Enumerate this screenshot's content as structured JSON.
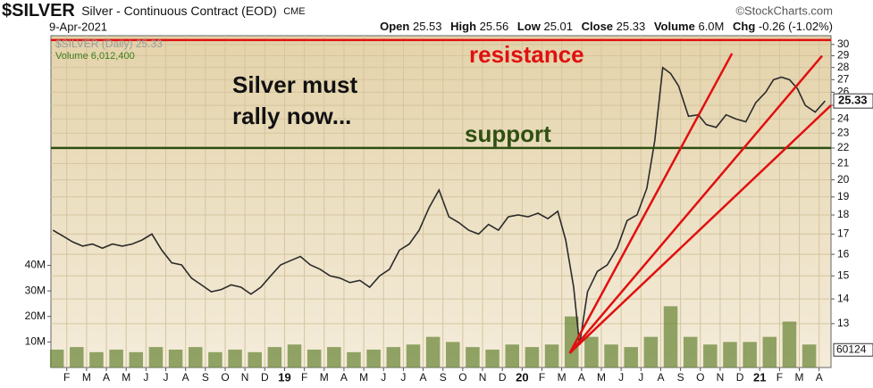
{
  "chart_data": [
    {
      "type": "line",
      "title": "$SILVER",
      "subtitle": "Silver - Continuous Contract (EOD)",
      "exchange": "CME",
      "credit": "©StockCharts.com",
      "date": "9-Apr-2021",
      "quote": {
        "open_label": "Open",
        "open": 25.53,
        "high_label": "High",
        "high": 25.56,
        "low_label": "Low",
        "low": 25.01,
        "close_label": "Close",
        "close": 25.33,
        "volume_label": "Volume",
        "volume": "6.0M",
        "chg_label": "Chg",
        "chg": "-0.26 (-1.02%)"
      },
      "annotations": {
        "resistance": "resistance",
        "support": "support",
        "call": [
          "Silver must",
          "rally now..."
        ]
      },
      "x": [
        0.3,
        0.8,
        1.3,
        1.8,
        2.3,
        2.8,
        3.3,
        3.8,
        4.3,
        4.8,
        5.3,
        5.8,
        6.3,
        6.8,
        7.3,
        7.8,
        8.3,
        8.8,
        9.3,
        9.8,
        10.3,
        10.8,
        11.3,
        11.8,
        12.3,
        12.8,
        13.3,
        13.8,
        14.3,
        14.8,
        15.3,
        15.8,
        16.3,
        16.8,
        17.3,
        17.8,
        18.3,
        18.8,
        19.3,
        19.8,
        20.3,
        20.8,
        21.3,
        21.8,
        22.3,
        22.8,
        23.3,
        23.8,
        24.3,
        24.8,
        25.3,
        25.8,
        26.2,
        26.6,
        26.9,
        27.3,
        27.8,
        28.3,
        28.8,
        29.3,
        29.8,
        30.3,
        30.7,
        31.1,
        31.5,
        31.9,
        32.4,
        32.9,
        33.3,
        33.8,
        34.3,
        34.8,
        35.3,
        35.8,
        36.3,
        36.7,
        37.1,
        37.5,
        37.9,
        38.3,
        38.8,
        39.3
      ],
      "series": [
        {
          "name": "$SILVER (Daily)",
          "color": "#2b2b2b",
          "values": [
            17.2,
            16.9,
            16.6,
            16.4,
            16.5,
            16.3,
            16.5,
            16.4,
            16.5,
            16.7,
            17.0,
            16.2,
            15.6,
            15.5,
            14.9,
            14.6,
            14.3,
            14.4,
            14.6,
            14.5,
            14.2,
            14.5,
            15.0,
            15.5,
            15.7,
            15.9,
            15.5,
            15.3,
            15.0,
            14.9,
            14.7,
            14.8,
            14.5,
            15.0,
            15.3,
            16.2,
            16.5,
            17.2,
            18.4,
            19.4,
            17.9,
            17.6,
            17.2,
            17.0,
            17.5,
            17.2,
            17.9,
            18.0,
            17.9,
            18.1,
            17.8,
            18.2,
            16.7,
            14.5,
            12.2,
            14.3,
            15.2,
            15.5,
            16.3,
            17.7,
            18.0,
            19.5,
            22.5,
            28.0,
            27.5,
            26.5,
            24.2,
            24.3,
            23.6,
            23.4,
            24.3,
            24.0,
            23.8,
            25.2,
            26.0,
            27.0,
            27.2,
            27.0,
            26.3,
            25.0,
            24.5,
            25.33
          ]
        }
      ],
      "lines": [
        {
          "name": "resistance",
          "color": "#e01010",
          "x": [
            0.2,
            39.6
          ],
          "y": [
            30.4,
            30.4
          ]
        },
        {
          "name": "support",
          "color": "#2e4f12",
          "x": [
            0.2,
            39.6
          ],
          "y": [
            22,
            22
          ]
        },
        {
          "name": "fan-1",
          "color": "#e01010",
          "x": [
            26.4,
            34.6
          ],
          "y": [
            11.9,
            29.2
          ]
        },
        {
          "name": "fan-2",
          "color": "#e01010",
          "x": [
            26.4,
            39.15
          ],
          "y": [
            11.9,
            29.0
          ]
        },
        {
          "name": "fan-3",
          "color": "#e01010",
          "x": [
            26.4,
            39.6
          ],
          "y": [
            11.9,
            25.0
          ]
        }
      ],
      "xlim": [
        0.2,
        39.6
      ],
      "ylim": [
        11.4,
        30.8
      ],
      "log_scale": true,
      "grid": true,
      "yticks": [
        13,
        14,
        15,
        16,
        17,
        18,
        19,
        20,
        21,
        22,
        23,
        24,
        25,
        26,
        27,
        28,
        29,
        30
      ],
      "xticks": [
        {
          "value": 1,
          "label": "F"
        },
        {
          "value": 2,
          "label": "M"
        },
        {
          "value": 3,
          "label": "A"
        },
        {
          "value": 4,
          "label": "M"
        },
        {
          "value": 5,
          "label": "J"
        },
        {
          "value": 6,
          "label": "J"
        },
        {
          "value": 7,
          "label": "A"
        },
        {
          "value": 8,
          "label": "S"
        },
        {
          "value": 9,
          "label": "O"
        },
        {
          "value": 10,
          "label": "N"
        },
        {
          "value": 11,
          "label": "D"
        },
        {
          "value": 12,
          "label": "19"
        },
        {
          "value": 13,
          "label": "F"
        },
        {
          "value": 14,
          "label": "M"
        },
        {
          "value": 15,
          "label": "A"
        },
        {
          "value": 16,
          "label": "M"
        },
        {
          "value": 17,
          "label": "J"
        },
        {
          "value": 18,
          "label": "J"
        },
        {
          "value": 19,
          "label": "A"
        },
        {
          "value": 20,
          "label": "S"
        },
        {
          "value": 21,
          "label": "O"
        },
        {
          "value": 22,
          "label": "N"
        },
        {
          "value": 23,
          "label": "D"
        },
        {
          "value": 24,
          "label": "20"
        },
        {
          "value": 25,
          "label": "F"
        },
        {
          "value": 26,
          "label": "M"
        },
        {
          "value": 27,
          "label": "A"
        },
        {
          "value": 28,
          "label": "M"
        },
        {
          "value": 29,
          "label": "J"
        },
        {
          "value": 30,
          "label": "J"
        },
        {
          "value": 31,
          "label": "A"
        },
        {
          "value": 32,
          "label": "S"
        },
        {
          "value": 33,
          "label": "O"
        },
        {
          "value": 34,
          "label": "N"
        },
        {
          "value": 35,
          "label": "D"
        },
        {
          "value": 36,
          "label": "21"
        },
        {
          "value": 37,
          "label": "F"
        },
        {
          "value": 38,
          "label": "M"
        },
        {
          "value": 39,
          "label": "A"
        }
      ]
    },
    {
      "type": "bar",
      "name": "Volume",
      "last_label": "6,012,400",
      "tag": "60124",
      "color": "#6f8a3c",
      "x": [
        0.5,
        1.5,
        2.5,
        3.5,
        4.5,
        5.5,
        6.5,
        7.5,
        8.5,
        9.5,
        10.5,
        11.5,
        12.5,
        13.5,
        14.5,
        15.5,
        16.5,
        17.5,
        18.5,
        19.5,
        20.5,
        21.5,
        22.5,
        23.5,
        24.5,
        25.5,
        26.5,
        27.5,
        28.5,
        29.5,
        30.5,
        31.5,
        32.5,
        33.5,
        34.5,
        35.5,
        36.5,
        37.5,
        38.5
      ],
      "values": [
        7,
        8,
        6,
        7,
        6,
        8,
        7,
        8,
        6,
        7,
        6,
        8,
        9,
        7,
        8,
        6,
        7,
        8,
        9,
        12,
        10,
        8,
        7,
        9,
        8,
        9,
        20,
        12,
        9,
        8,
        12,
        24,
        12,
        9,
        10,
        10,
        12,
        18,
        9
      ],
      "ylim": [
        0,
        130
      ],
      "yticks": [
        {
          "value": 10,
          "label": "10M"
        },
        {
          "value": 20,
          "label": "20M"
        },
        {
          "value": 30,
          "label": "30M"
        },
        {
          "value": 40,
          "label": "40M"
        }
      ]
    }
  ]
}
